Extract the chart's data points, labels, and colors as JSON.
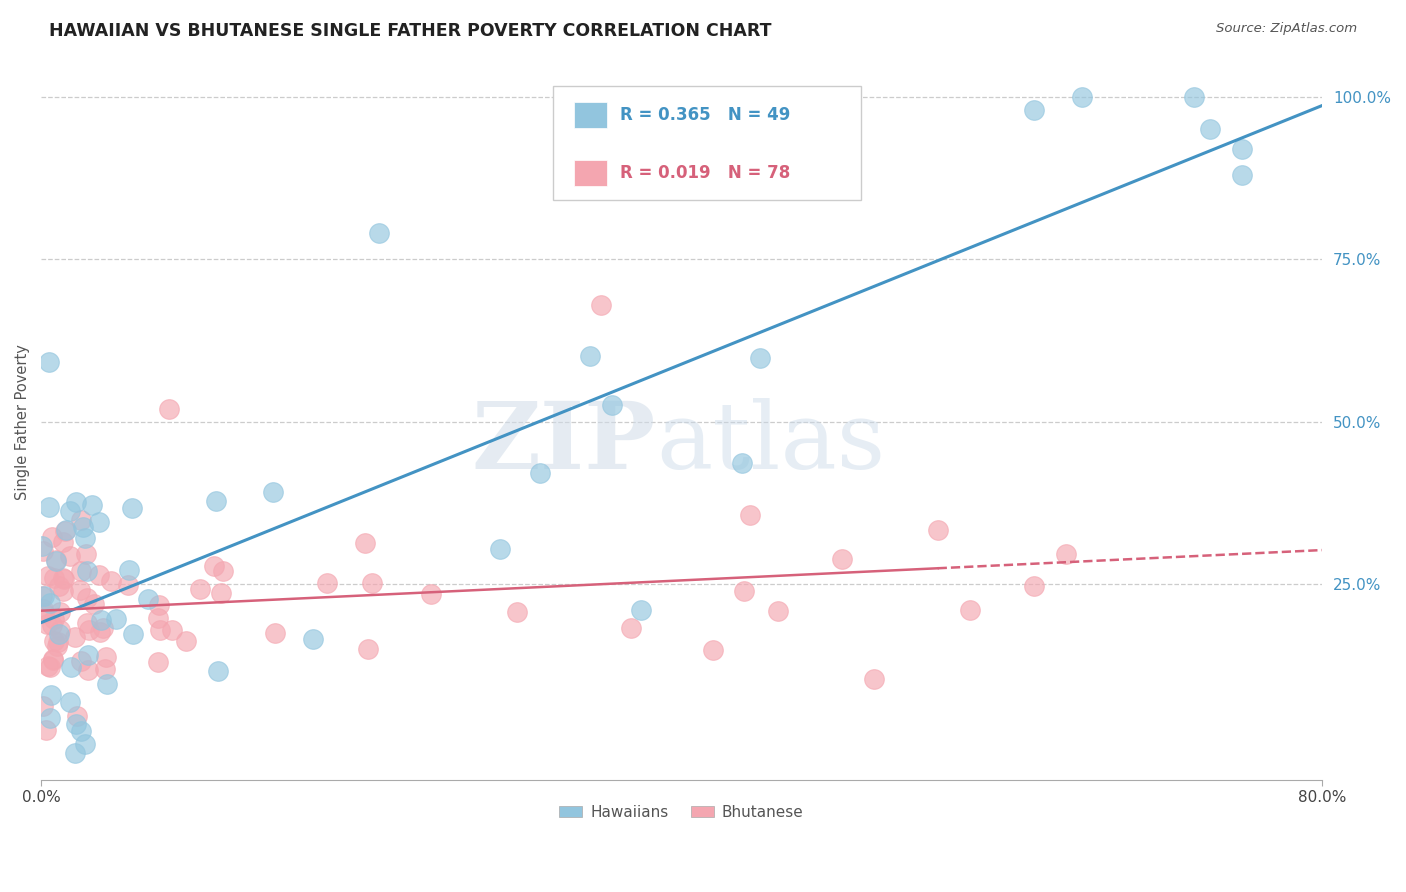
{
  "title": "HAWAIIAN VS BHUTANESE SINGLE FATHER POVERTY CORRELATION CHART",
  "source": "Source: ZipAtlas.com",
  "ylabel": "Single Father Poverty",
  "watermark": "ZIPatlas",
  "hawaiian_color": "#92c5de",
  "bhutanese_color": "#f4a6b0",
  "hawaiian_line_color": "#4393c3",
  "bhutanese_line_color": "#d6617a",
  "xlim": [
    0.0,
    0.8
  ],
  "ylim": [
    -0.05,
    1.05
  ],
  "background_color": "#ffffff",
  "grid_color": "#cccccc",
  "hawaiian_seed": 42,
  "bhutanese_seed": 7
}
